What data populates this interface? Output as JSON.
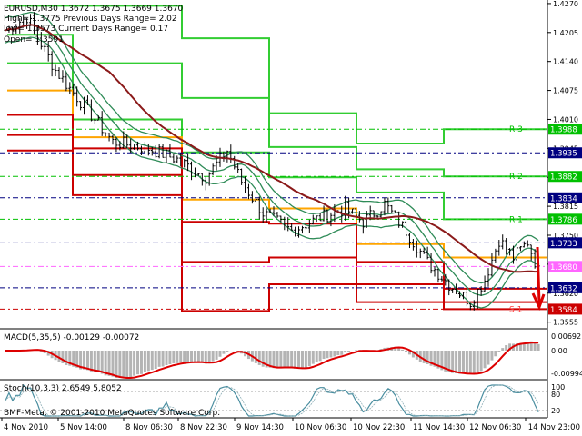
{
  "header": {
    "symbol_line": "EURUSD,M30  1.3672 1.3675 1.3669 1.3670",
    "high_line": "High= 1.3775     Previous Days Range= 2.02",
    "low_line": "low= 1.3573    Current Days Range= 0.17",
    "open_line": "Open= 1.3591"
  },
  "price_axis": {
    "ticks": [
      "1.4270",
      "1.4205",
      "1.4140",
      "1.4075",
      "1.4010",
      "1.3945",
      "1.3880",
      "1.3815",
      "1.3750",
      "1.3685",
      "1.3620",
      "1.3555"
    ],
    "tick_values": [
      1.427,
      1.4205,
      1.414,
      1.4075,
      1.401,
      1.3945,
      1.388,
      1.3815,
      1.375,
      1.3685,
      1.362,
      1.3555
    ],
    "ylim": [
      1.354,
      1.4278
    ]
  },
  "levels": [
    {
      "value": 1.3988,
      "label": "1.3988",
      "bg": "#00c000",
      "fg": "#ffffff",
      "name": "R 3",
      "name_color": "#00c000"
    },
    {
      "value": 1.3935,
      "label": "1.3935",
      "bg": "#000080",
      "fg": "#ffffff",
      "name": "",
      "name_color": ""
    },
    {
      "value": 1.3882,
      "label": "1.3882",
      "bg": "#00c000",
      "fg": "#ffffff",
      "name": "R 2",
      "name_color": "#00c000"
    },
    {
      "value": 1.3834,
      "label": "1.3834",
      "bg": "#000080",
      "fg": "#ffffff",
      "name": "",
      "name_color": ""
    },
    {
      "value": 1.3786,
      "label": "1.3786",
      "bg": "#00c000",
      "fg": "#ffffff",
      "name": "R 1",
      "name_color": "#00c000"
    },
    {
      "value": 1.3733,
      "label": "1.3733",
      "bg": "#000080",
      "fg": "#ffffff",
      "name": "",
      "name_color": ""
    },
    {
      "value": 1.368,
      "label": "1.3680",
      "bg": "#ff66ff",
      "fg": "#ffffff",
      "name": "",
      "name_color": ""
    },
    {
      "value": 1.3632,
      "label": "1.3632",
      "bg": "#000080",
      "fg": "#ffffff",
      "name": "",
      "name_color": ""
    },
    {
      "value": 1.3584,
      "label": "1.3584",
      "bg": "#cc0000",
      "fg": "#ffffff",
      "name": "S 1",
      "name_color": "#ff4040"
    }
  ],
  "macd": {
    "title": "MACD(5,35,5) -0.00129 -0.00072",
    "ticks": [
      "0.00692",
      "0.00",
      "-0.00994"
    ]
  },
  "stoch": {
    "title": "Stoch(10,3,3) 2.6549 5.8052",
    "ticks": [
      "100",
      "80",
      "20"
    ]
  },
  "watermark": "BMF-Meta, © 2001-2010 MetaQuotes Software Corp.",
  "time_axis": {
    "labels": [
      "4 Nov 2010",
      "5 Nov 14:00",
      "8 Nov 06:30",
      "8 Nov 22:30",
      "9 Nov 14:30",
      "10 Nov 06:30",
      "10 Nov 22:30",
      "11 Nov 14:30",
      "12 Nov 06:30",
      "14 Nov 23:00"
    ]
  },
  "colors": {
    "resistance": "#32cd32",
    "pivot": "#ffa500",
    "support": "#cc0000",
    "moving_average": "#8b1a1a",
    "bollinger": "#2e8b57",
    "candles": "#000000",
    "macd_line": "#dd0000",
    "macd_hist": "#b4b4b4",
    "stoch_line": "#4a8ea0"
  }
}
